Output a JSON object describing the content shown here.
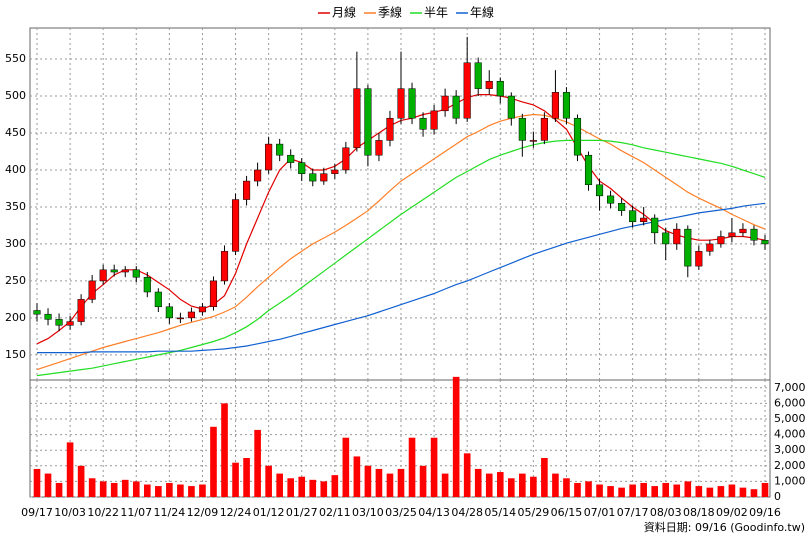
{
  "chart_data": {
    "type": "candlestick",
    "note": "資料日期: 09/16 (Goodinfo.tw)",
    "legend": "top",
    "grid": true,
    "up_color": "#ff0000",
    "down_color": "#00b000",
    "wick_color": "#000000",
    "categories": [
      "09/17",
      null,
      null,
      "10/03",
      null,
      null,
      "10/22",
      null,
      null,
      "11/07",
      null,
      null,
      "11/24",
      null,
      null,
      "12/09",
      null,
      null,
      "12/24",
      null,
      null,
      "01/12",
      null,
      null,
      "01/27",
      null,
      null,
      "02/11",
      null,
      null,
      "03/10",
      null,
      null,
      "03/25",
      null,
      null,
      "04/13",
      null,
      null,
      "04/28",
      null,
      null,
      "05/14",
      null,
      null,
      "05/29",
      null,
      null,
      "06/15",
      null,
      null,
      "07/01",
      null,
      null,
      "07/17",
      null,
      null,
      "08/03",
      null,
      null,
      "08/18",
      null,
      null,
      "09/02",
      null,
      null,
      "09/16"
    ],
    "open": [
      210,
      205,
      198,
      190,
      195,
      225,
      250,
      265,
      262,
      265,
      255,
      235,
      215,
      200,
      200,
      208,
      215,
      250,
      290,
      360,
      385,
      400,
      435,
      420,
      410,
      395,
      385,
      395,
      400,
      430,
      510,
      420,
      440,
      470,
      510,
      470,
      455,
      480,
      500,
      470,
      545,
      510,
      520,
      500,
      470,
      440,
      440,
      470,
      505,
      470,
      420,
      380,
      365,
      355,
      345,
      330,
      335,
      315,
      300,
      320,
      270,
      290,
      300,
      310,
      315,
      320,
      305
    ],
    "high": [
      220,
      213,
      206,
      203,
      232,
      258,
      272,
      272,
      270,
      270,
      262,
      240,
      220,
      207,
      214,
      220,
      256,
      298,
      368,
      392,
      410,
      445,
      442,
      428,
      416,
      402,
      403,
      408,
      438,
      560,
      515,
      450,
      480,
      560,
      518,
      478,
      488,
      510,
      508,
      580,
      552,
      535,
      525,
      505,
      476,
      452,
      478,
      535,
      512,
      475,
      425,
      388,
      372,
      362,
      352,
      350,
      340,
      322,
      328,
      325,
      298,
      306,
      318,
      335,
      328,
      325,
      312
    ],
    "low": [
      195,
      190,
      182,
      184,
      190,
      220,
      245,
      256,
      255,
      248,
      228,
      208,
      192,
      193,
      195,
      203,
      210,
      245,
      285,
      352,
      378,
      395,
      412,
      402,
      385,
      378,
      380,
      388,
      395,
      425,
      405,
      412,
      432,
      462,
      462,
      445,
      448,
      472,
      462,
      465,
      500,
      502,
      490,
      460,
      418,
      430,
      435,
      465,
      462,
      412,
      372,
      345,
      348,
      338,
      322,
      325,
      300,
      278,
      292,
      255,
      265,
      284,
      295,
      302,
      310,
      298,
      292
    ],
    "close": [
      205,
      198,
      190,
      195,
      225,
      250,
      265,
      262,
      265,
      255,
      235,
      215,
      200,
      200,
      208,
      215,
      250,
      290,
      360,
      385,
      400,
      435,
      420,
      410,
      395,
      385,
      395,
      400,
      430,
      510,
      420,
      440,
      470,
      510,
      470,
      455,
      480,
      500,
      470,
      545,
      510,
      520,
      500,
      470,
      440,
      440,
      470,
      505,
      470,
      420,
      380,
      365,
      355,
      345,
      330,
      335,
      315,
      300,
      320,
      270,
      290,
      300,
      310,
      315,
      320,
      305,
      300
    ],
    "series": [
      {
        "name": "月線",
        "color": "#e00000",
        "values": [
          165,
          172,
          183,
          195,
          215,
          233,
          245,
          258,
          265,
          265,
          258,
          248,
          238,
          225,
          216,
          212,
          218,
          230,
          260,
          300,
          335,
          370,
          400,
          415,
          410,
          400,
          400,
          405,
          415,
          430,
          440,
          450,
          460,
          467,
          470,
          475,
          478,
          482,
          490,
          498,
          502,
          502,
          500,
          497,
          492,
          488,
          480,
          468,
          455,
          430,
          405,
          385,
          375,
          362,
          350,
          340,
          328,
          318,
          312,
          308,
          305,
          305,
          307,
          310,
          310,
          308,
          305
        ]
      },
      {
        "name": "季線",
        "color": "#ff7f27",
        "values": [
          130,
          135,
          140,
          145,
          150,
          155,
          160,
          164,
          168,
          172,
          176,
          180,
          185,
          190,
          194,
          198,
          202,
          208,
          215,
          228,
          242,
          255,
          268,
          280,
          290,
          300,
          308,
          316,
          325,
          335,
          345,
          358,
          372,
          385,
          395,
          405,
          415,
          425,
          435,
          445,
          452,
          460,
          466,
          470,
          473,
          475,
          474,
          470,
          465,
          458,
          450,
          442,
          435,
          426,
          418,
          410,
          400,
          390,
          380,
          370,
          362,
          355,
          348,
          340,
          333,
          326,
          320
        ]
      },
      {
        "name": "半年",
        "color": "#22dd22",
        "values": [
          122,
          124,
          126,
          128,
          130,
          132,
          135,
          138,
          141,
          144,
          147,
          150,
          153,
          156,
          160,
          164,
          168,
          173,
          180,
          188,
          198,
          210,
          220,
          230,
          241,
          252,
          263,
          274,
          285,
          296,
          307,
          318,
          329,
          340,
          350,
          360,
          370,
          380,
          390,
          398,
          406,
          414,
          420,
          425,
          430,
          434,
          437,
          439,
          440,
          440,
          440,
          440,
          439,
          437,
          434,
          430,
          427,
          424,
          421,
          418,
          415,
          412,
          409,
          405,
          400,
          395,
          390
        ]
      },
      {
        "name": "年線",
        "color": "#1060d0",
        "values": [
          153,
          153,
          153,
          153,
          153,
          154,
          154,
          154,
          154,
          154,
          154,
          155,
          155,
          155,
          155,
          156,
          157,
          158,
          160,
          162,
          165,
          168,
          171,
          175,
          179,
          183,
          187,
          191,
          195,
          199,
          203,
          208,
          213,
          218,
          223,
          228,
          233,
          239,
          245,
          250,
          256,
          262,
          268,
          274,
          280,
          286,
          291,
          296,
          301,
          305,
          309,
          313,
          317,
          321,
          324,
          327,
          330,
          333,
          336,
          339,
          342,
          344,
          346,
          348,
          351,
          353,
          355
        ]
      }
    ],
    "volume": {
      "color": "#ff0000",
      "axis": "y2",
      "values": [
        1800,
        1500,
        900,
        3500,
        2000,
        1200,
        1000,
        900,
        1100,
        1000,
        800,
        700,
        900,
        800,
        700,
        800,
        4500,
        6000,
        2200,
        2500,
        4300,
        2000,
        1500,
        1200,
        1300,
        1100,
        1000,
        1400,
        3800,
        2600,
        2000,
        1800,
        1500,
        1800,
        3800,
        2000,
        3800,
        1500,
        7700,
        2800,
        1800,
        1500,
        1600,
        1200,
        1500,
        1300,
        2500,
        1500,
        1200,
        900,
        1000,
        800,
        700,
        600,
        800,
        900,
        700,
        900,
        800,
        1000,
        700,
        600,
        700,
        800,
        600,
        500,
        900
      ]
    },
    "ylim": [
      116,
      592
    ],
    "yticks": [
      150,
      200,
      250,
      300,
      350,
      400,
      450,
      500,
      550
    ],
    "y2lim": [
      0,
      7500
    ],
    "y2ticks": [
      0,
      {
        "value": 1000,
        "label": "1,000"
      },
      {
        "value": 2000,
        "label": "2,000"
      },
      {
        "value": 3000,
        "label": "3,000"
      },
      {
        "value": 4000,
        "label": "4,000"
      },
      {
        "value": 5000,
        "label": "5,000"
      },
      {
        "value": 6000,
        "label": "6,000"
      },
      {
        "value": 7000,
        "label": "7,000"
      }
    ]
  }
}
